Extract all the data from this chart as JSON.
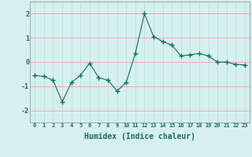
{
  "x": [
    0,
    1,
    2,
    3,
    4,
    5,
    6,
    7,
    8,
    9,
    10,
    11,
    12,
    13,
    14,
    15,
    16,
    17,
    18,
    19,
    20,
    21,
    22,
    23
  ],
  "y": [
    -0.55,
    -0.6,
    -0.75,
    -1.65,
    -0.85,
    -0.55,
    -0.05,
    -0.65,
    -0.75,
    -1.2,
    -0.85,
    0.35,
    2.0,
    1.05,
    0.85,
    0.7,
    0.25,
    0.3,
    0.35,
    0.25,
    0.0,
    0.0,
    -0.1,
    -0.12
  ],
  "xlabel": "Humidex (Indice chaleur)",
  "xlim": [
    -0.5,
    23.5
  ],
  "ylim": [
    -2.5,
    2.5
  ],
  "yticks": [
    -2,
    -1,
    0,
    1,
    2
  ],
  "xtick_labels": [
    "0",
    "1",
    "2",
    "3",
    "4",
    "5",
    "6",
    "7",
    "8",
    "9",
    "10",
    "11",
    "12",
    "13",
    "14",
    "15",
    "16",
    "17",
    "18",
    "19",
    "20",
    "21",
    "22",
    "23"
  ],
  "line_color": "#1a6b5a",
  "marker": "+",
  "bg_color": "#d6f0ef",
  "hgrid_color": "#f0a0a0",
  "vgrid_color": "#b8d8d8",
  "marker_color": "#1a6b5a",
  "font_family": "monospace"
}
